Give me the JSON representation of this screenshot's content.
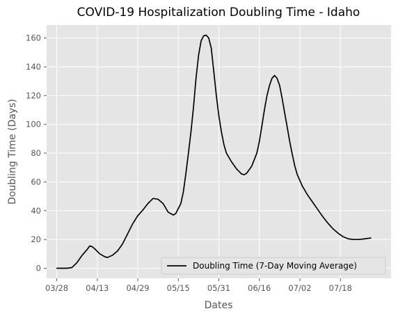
{
  "chart_data": {
    "type": "line",
    "title": "COVID-19 Hospitalization Doubling Time - Idaho",
    "xlabel": "Dates",
    "ylabel": "Doubling Time (Days)",
    "xlim": [
      "2020-03-24",
      "2020-08-07"
    ],
    "ylim": [
      -7,
      169
    ],
    "x_ticks": [
      "03/28",
      "04/13",
      "04/29",
      "05/15",
      "05/31",
      "06/16",
      "07/02",
      "07/18"
    ],
    "y_ticks": [
      0,
      20,
      40,
      60,
      80,
      100,
      120,
      140,
      160
    ],
    "grid": true,
    "legend": {
      "placement": "lower-right",
      "entries": [
        "Doubling Time (7-Day Moving Average)"
      ]
    },
    "colors": {
      "background": "#e5e5e5",
      "grid": "#ffffff",
      "line": "#000000",
      "text": "#555555"
    },
    "series": [
      {
        "name": "Doubling Time (7-Day Moving Average)",
        "points": [
          [
            "2020-03-28",
            0
          ],
          [
            "2020-04-01",
            0
          ],
          [
            "2020-04-03",
            0.5
          ],
          [
            "2020-04-05",
            4
          ],
          [
            "2020-04-07",
            9
          ],
          [
            "2020-04-09",
            13
          ],
          [
            "2020-04-10",
            15.5
          ],
          [
            "2020-04-11",
            15
          ],
          [
            "2020-04-12",
            13.5
          ],
          [
            "2020-04-14",
            10
          ],
          [
            "2020-04-16",
            8
          ],
          [
            "2020-04-17",
            7.5
          ],
          [
            "2020-04-19",
            9
          ],
          [
            "2020-04-21",
            12
          ],
          [
            "2020-04-23",
            17
          ],
          [
            "2020-04-25",
            24
          ],
          [
            "2020-04-27",
            31
          ],
          [
            "2020-04-29",
            36.5
          ],
          [
            "2020-05-01",
            40.5
          ],
          [
            "2020-05-03",
            45
          ],
          [
            "2020-05-05",
            48.5
          ],
          [
            "2020-05-07",
            48
          ],
          [
            "2020-05-09",
            45
          ],
          [
            "2020-05-11",
            39
          ],
          [
            "2020-05-13",
            37
          ],
          [
            "2020-05-14",
            38
          ],
          [
            "2020-05-16",
            45
          ],
          [
            "2020-05-17",
            53
          ],
          [
            "2020-05-18",
            66
          ],
          [
            "2020-05-19",
            80
          ],
          [
            "2020-05-20",
            95
          ],
          [
            "2020-05-21",
            112
          ],
          [
            "2020-05-22",
            132
          ],
          [
            "2020-05-23",
            148
          ],
          [
            "2020-05-24",
            158
          ],
          [
            "2020-05-25",
            161.5
          ],
          [
            "2020-05-26",
            162
          ],
          [
            "2020-05-27",
            160
          ],
          [
            "2020-05-28",
            153
          ],
          [
            "2020-05-29",
            137
          ],
          [
            "2020-05-30",
            120
          ],
          [
            "2020-05-31",
            106
          ],
          [
            "2020-06-01",
            95
          ],
          [
            "2020-06-02",
            86
          ],
          [
            "2020-06-03",
            80
          ],
          [
            "2020-06-05",
            74
          ],
          [
            "2020-06-07",
            69
          ],
          [
            "2020-06-09",
            65.5
          ],
          [
            "2020-06-10",
            65
          ],
          [
            "2020-06-11",
            66
          ],
          [
            "2020-06-13",
            71
          ],
          [
            "2020-06-15",
            80
          ],
          [
            "2020-06-16",
            88
          ],
          [
            "2020-06-17",
            99
          ],
          [
            "2020-06-18",
            110
          ],
          [
            "2020-06-19",
            120
          ],
          [
            "2020-06-20",
            127
          ],
          [
            "2020-06-21",
            132
          ],
          [
            "2020-06-22",
            134
          ],
          [
            "2020-06-23",
            132
          ],
          [
            "2020-06-24",
            127
          ],
          [
            "2020-06-25",
            118
          ],
          [
            "2020-06-26",
            108
          ],
          [
            "2020-06-27",
            98
          ],
          [
            "2020-06-28",
            88
          ],
          [
            "2020-06-29",
            79
          ],
          [
            "2020-06-30",
            71
          ],
          [
            "2020-07-01",
            65
          ],
          [
            "2020-07-03",
            57
          ],
          [
            "2020-07-05",
            51
          ],
          [
            "2020-07-07",
            46
          ],
          [
            "2020-07-09",
            41
          ],
          [
            "2020-07-11",
            36
          ],
          [
            "2020-07-13",
            31.5
          ],
          [
            "2020-07-15",
            27.5
          ],
          [
            "2020-07-17",
            24.5
          ],
          [
            "2020-07-19",
            22
          ],
          [
            "2020-07-21",
            20.5
          ],
          [
            "2020-07-23",
            20
          ],
          [
            "2020-07-25",
            20
          ],
          [
            "2020-07-27",
            20.3
          ],
          [
            "2020-07-29",
            20.8
          ],
          [
            "2020-07-30",
            21
          ]
        ]
      }
    ]
  }
}
